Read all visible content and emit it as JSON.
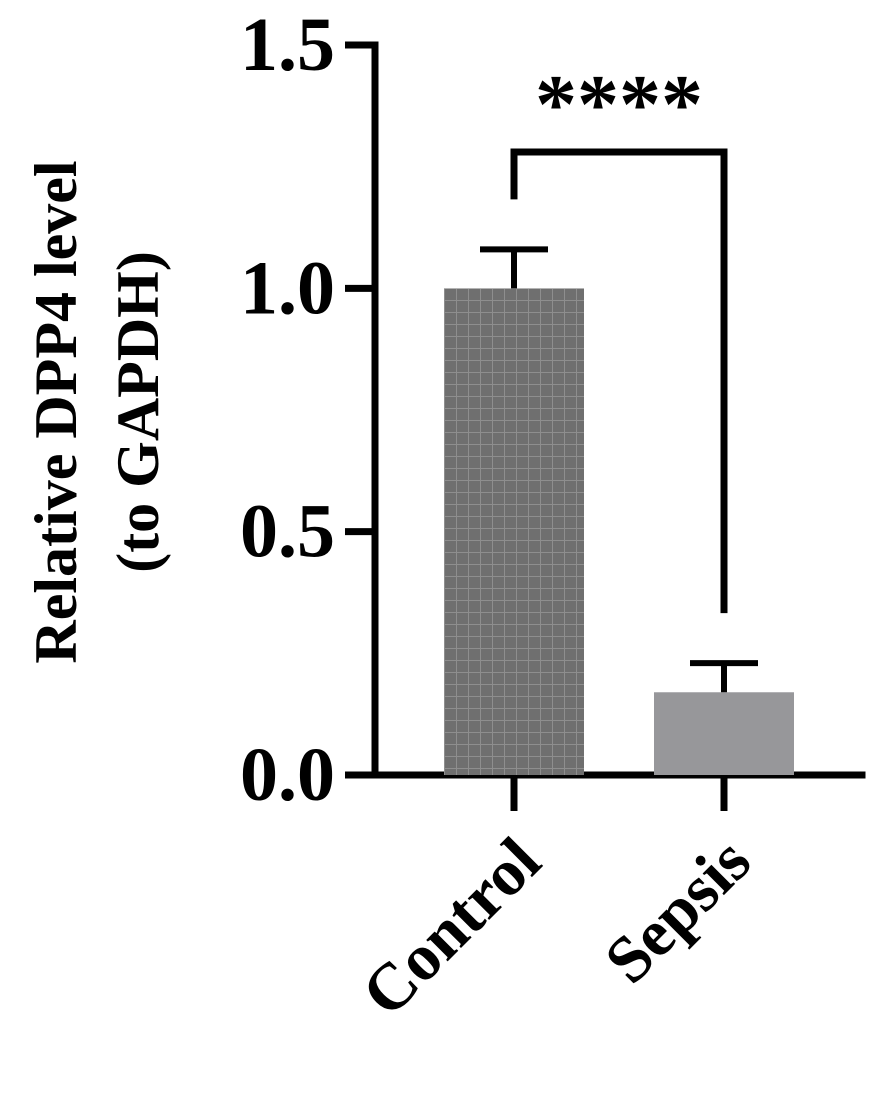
{
  "chart_data": {
    "type": "bar",
    "title": "",
    "ylabel_lines": [
      "Relative DPP4 level",
      "(to GAPDH)"
    ],
    "xlabel": "",
    "categories": [
      "Control",
      "Sepsis"
    ],
    "values": [
      1.0,
      0.17
    ],
    "errors": [
      0.08,
      0.06
    ],
    "ylim": [
      0,
      1.5
    ],
    "yticks": [
      0.0,
      0.5,
      1.0,
      1.5
    ],
    "ytick_labels": [
      "0.0",
      "0.5",
      "1.0",
      "1.5"
    ],
    "bar_colors": [
      "#6f6f6f",
      "#97979a"
    ],
    "bar_patterns": [
      "grid",
      "solid"
    ],
    "significance": {
      "from": "Control",
      "to": "Sepsis",
      "label": "****"
    },
    "grid": false,
    "legend": "none"
  }
}
